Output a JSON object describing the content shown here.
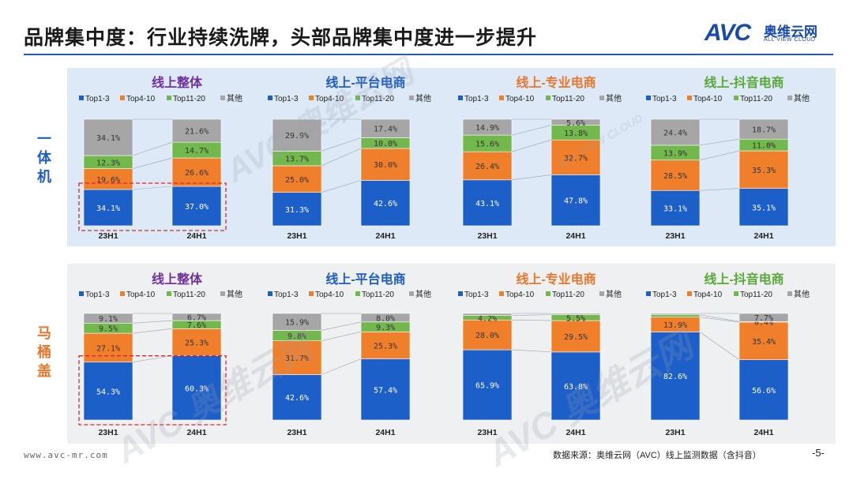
{
  "header": {
    "title": "品牌集中度：行业持续洗牌，头部品牌集中度进一步提升",
    "logo_mark": "AVC",
    "logo_cn": "奥维云网",
    "logo_en": "ALL VIEW CLOUD"
  },
  "sections": [
    {
      "label": "一体机",
      "color": "#1e5cc8"
    },
    {
      "label": "马桶盖",
      "color": "#e8772e"
    }
  ],
  "legend": [
    "Top1-3",
    "Top4-10",
    "Top11-20",
    "其他"
  ],
  "colors": {
    "top1_3": "#1d5fc8",
    "top4_10": "#f07f2b",
    "top11_20": "#72b84c",
    "other": "#a6a6a6",
    "accent": "#2a56b6"
  },
  "watermark": {
    "brand": "AVC 奥维云网",
    "en": "ALL VIEW CLOUD"
  },
  "chart_data": [
    {
      "type": "bar",
      "stacked": true,
      "section": "一体机",
      "title": "线上整体",
      "title_color": "#7030a0",
      "categories": [
        "23H1",
        "24H1"
      ],
      "highlighted": true,
      "series": [
        {
          "name": "Top1-3",
          "values": [
            34.1,
            37.0
          ]
        },
        {
          "name": "Top4-10",
          "values": [
            19.6,
            26.6
          ]
        },
        {
          "name": "Top11-20",
          "values": [
            12.3,
            14.7
          ]
        },
        {
          "name": "其他",
          "values": [
            34.1,
            21.6
          ]
        }
      ],
      "labels": [
        [
          "34.1%",
          "37.0%"
        ],
        [
          "19.6%",
          "26.6%"
        ],
        [
          "12.3%",
          "14.7%"
        ],
        [
          "34.1%",
          "21.6%"
        ]
      ]
    },
    {
      "type": "bar",
      "stacked": true,
      "section": "一体机",
      "title": "线上-平台电商",
      "title_color": "#1e5cc8",
      "categories": [
        "23H1",
        "24H1"
      ],
      "highlighted": false,
      "series": [
        {
          "name": "Top1-3",
          "values": [
            31.3,
            42.6
          ]
        },
        {
          "name": "Top4-10",
          "values": [
            25.0,
            30.0
          ]
        },
        {
          "name": "Top11-20",
          "values": [
            13.7,
            10.0
          ]
        },
        {
          "name": "其他",
          "values": [
            29.9,
            17.4
          ]
        }
      ],
      "labels": [
        [
          "31.3%",
          "42.6%"
        ],
        [
          "25.0%",
          "30.0%"
        ],
        [
          "13.7%",
          "10.0%"
        ],
        [
          "29.9%",
          "17.4%"
        ]
      ]
    },
    {
      "type": "bar",
      "stacked": true,
      "section": "一体机",
      "title": "线上-专业电商",
      "title_color": "#e8772e",
      "categories": [
        "23H1",
        "24H1"
      ],
      "highlighted": false,
      "series": [
        {
          "name": "Top1-3",
          "values": [
            43.1,
            47.8
          ]
        },
        {
          "name": "Top4-10",
          "values": [
            26.4,
            32.7
          ]
        },
        {
          "name": "Top11-20",
          "values": [
            15.6,
            13.8
          ]
        },
        {
          "name": "其他",
          "values": [
            14.9,
            5.6
          ]
        }
      ],
      "labels": [
        [
          "43.1%",
          "47.8%"
        ],
        [
          "26.4%",
          "32.7%"
        ],
        [
          "15.6%",
          "13.8%"
        ],
        [
          "14.9%",
          "5.6%"
        ]
      ]
    },
    {
      "type": "bar",
      "stacked": true,
      "section": "一体机",
      "title": "线上-抖音电商",
      "title_color": "#5aa83a",
      "categories": [
        "23H1",
        "24H1"
      ],
      "highlighted": false,
      "series": [
        {
          "name": "Top1-3",
          "values": [
            33.1,
            35.1
          ]
        },
        {
          "name": "Top4-10",
          "values": [
            28.5,
            35.3
          ]
        },
        {
          "name": "Top11-20",
          "values": [
            13.9,
            11.0
          ]
        },
        {
          "name": "其他",
          "values": [
            24.4,
            18.7
          ]
        }
      ],
      "labels": [
        [
          "33.1%",
          "35.1%"
        ],
        [
          "28.5%",
          "35.3%"
        ],
        [
          "13.9%",
          "11.0%"
        ],
        [
          "24.4%",
          "18.7%"
        ]
      ]
    },
    {
      "type": "bar",
      "stacked": true,
      "section": "马桶盖",
      "title": "线上整体",
      "title_color": "#7030a0",
      "categories": [
        "23H1",
        "24H1"
      ],
      "highlighted": true,
      "series": [
        {
          "name": "Top1-3",
          "values": [
            54.3,
            60.3
          ]
        },
        {
          "name": "Top4-10",
          "values": [
            27.1,
            25.3
          ]
        },
        {
          "name": "Top11-20",
          "values": [
            9.5,
            7.6
          ]
        },
        {
          "name": "其他",
          "values": [
            9.1,
            6.7
          ]
        }
      ],
      "labels": [
        [
          "54.3%",
          "60.3%"
        ],
        [
          "27.1%",
          "25.3%"
        ],
        [
          "9.5%",
          "7.6%"
        ],
        [
          "9.1%",
          "6.7%"
        ]
      ]
    },
    {
      "type": "bar",
      "stacked": true,
      "section": "马桶盖",
      "title": "线上-平台电商",
      "title_color": "#1e5cc8",
      "categories": [
        "23H1",
        "24H1"
      ],
      "highlighted": false,
      "series": [
        {
          "name": "Top1-3",
          "values": [
            42.6,
            57.4
          ]
        },
        {
          "name": "Top4-10",
          "values": [
            31.7,
            25.3
          ]
        },
        {
          "name": "Top11-20",
          "values": [
            9.8,
            9.3
          ]
        },
        {
          "name": "其他",
          "values": [
            15.9,
            8.0
          ]
        }
      ],
      "labels": [
        [
          "42.6%",
          "57.4%"
        ],
        [
          "31.7%",
          "25.3%"
        ],
        [
          "9.8%",
          "9.3%"
        ],
        [
          "15.9%",
          "8.0%"
        ]
      ]
    },
    {
      "type": "bar",
      "stacked": true,
      "section": "马桶盖",
      "title": "线上-专业电商",
      "title_color": "#e8772e",
      "categories": [
        "23H1",
        "24H1"
      ],
      "highlighted": false,
      "series": [
        {
          "name": "Top1-3",
          "values": [
            65.9,
            63.8
          ]
        },
        {
          "name": "Top4-10",
          "values": [
            28.0,
            29.5
          ]
        },
        {
          "name": "Top11-20",
          "values": [
            4.2,
            5.5
          ]
        },
        {
          "name": "其他",
          "values": [
            1.9,
            1.2
          ]
        }
      ],
      "labels": [
        [
          "65.9%",
          "63.8%"
        ],
        [
          "28.0%",
          "29.5%"
        ],
        [
          "4.2%",
          "5.5%"
        ],
        [
          "",
          ""
        ]
      ]
    },
    {
      "type": "bar",
      "stacked": true,
      "section": "马桶盖",
      "title": "线上-抖音电商",
      "title_color": "#5aa83a",
      "categories": [
        "23H1",
        "24H1"
      ],
      "highlighted": false,
      "series": [
        {
          "name": "Top1-3",
          "values": [
            82.6,
            56.6
          ]
        },
        {
          "name": "Top4-10",
          "values": [
            13.9,
            35.4
          ]
        },
        {
          "name": "Top11-20",
          "values": [
            2.3,
            0.4
          ]
        },
        {
          "name": "其他",
          "values": [
            1.2,
            7.7
          ]
        }
      ],
      "labels": [
        [
          "82.6%",
          "56.6%"
        ],
        [
          "13.9%",
          "35.4%"
        ],
        [
          "",
          "0.4%"
        ],
        [
          "",
          "7.7%"
        ]
      ]
    }
  ],
  "footer": {
    "url": "www.avc-mr.com",
    "source": "数据来源：奥维云网（AVC）线上监测数据（含抖音）",
    "page": "-5-"
  }
}
